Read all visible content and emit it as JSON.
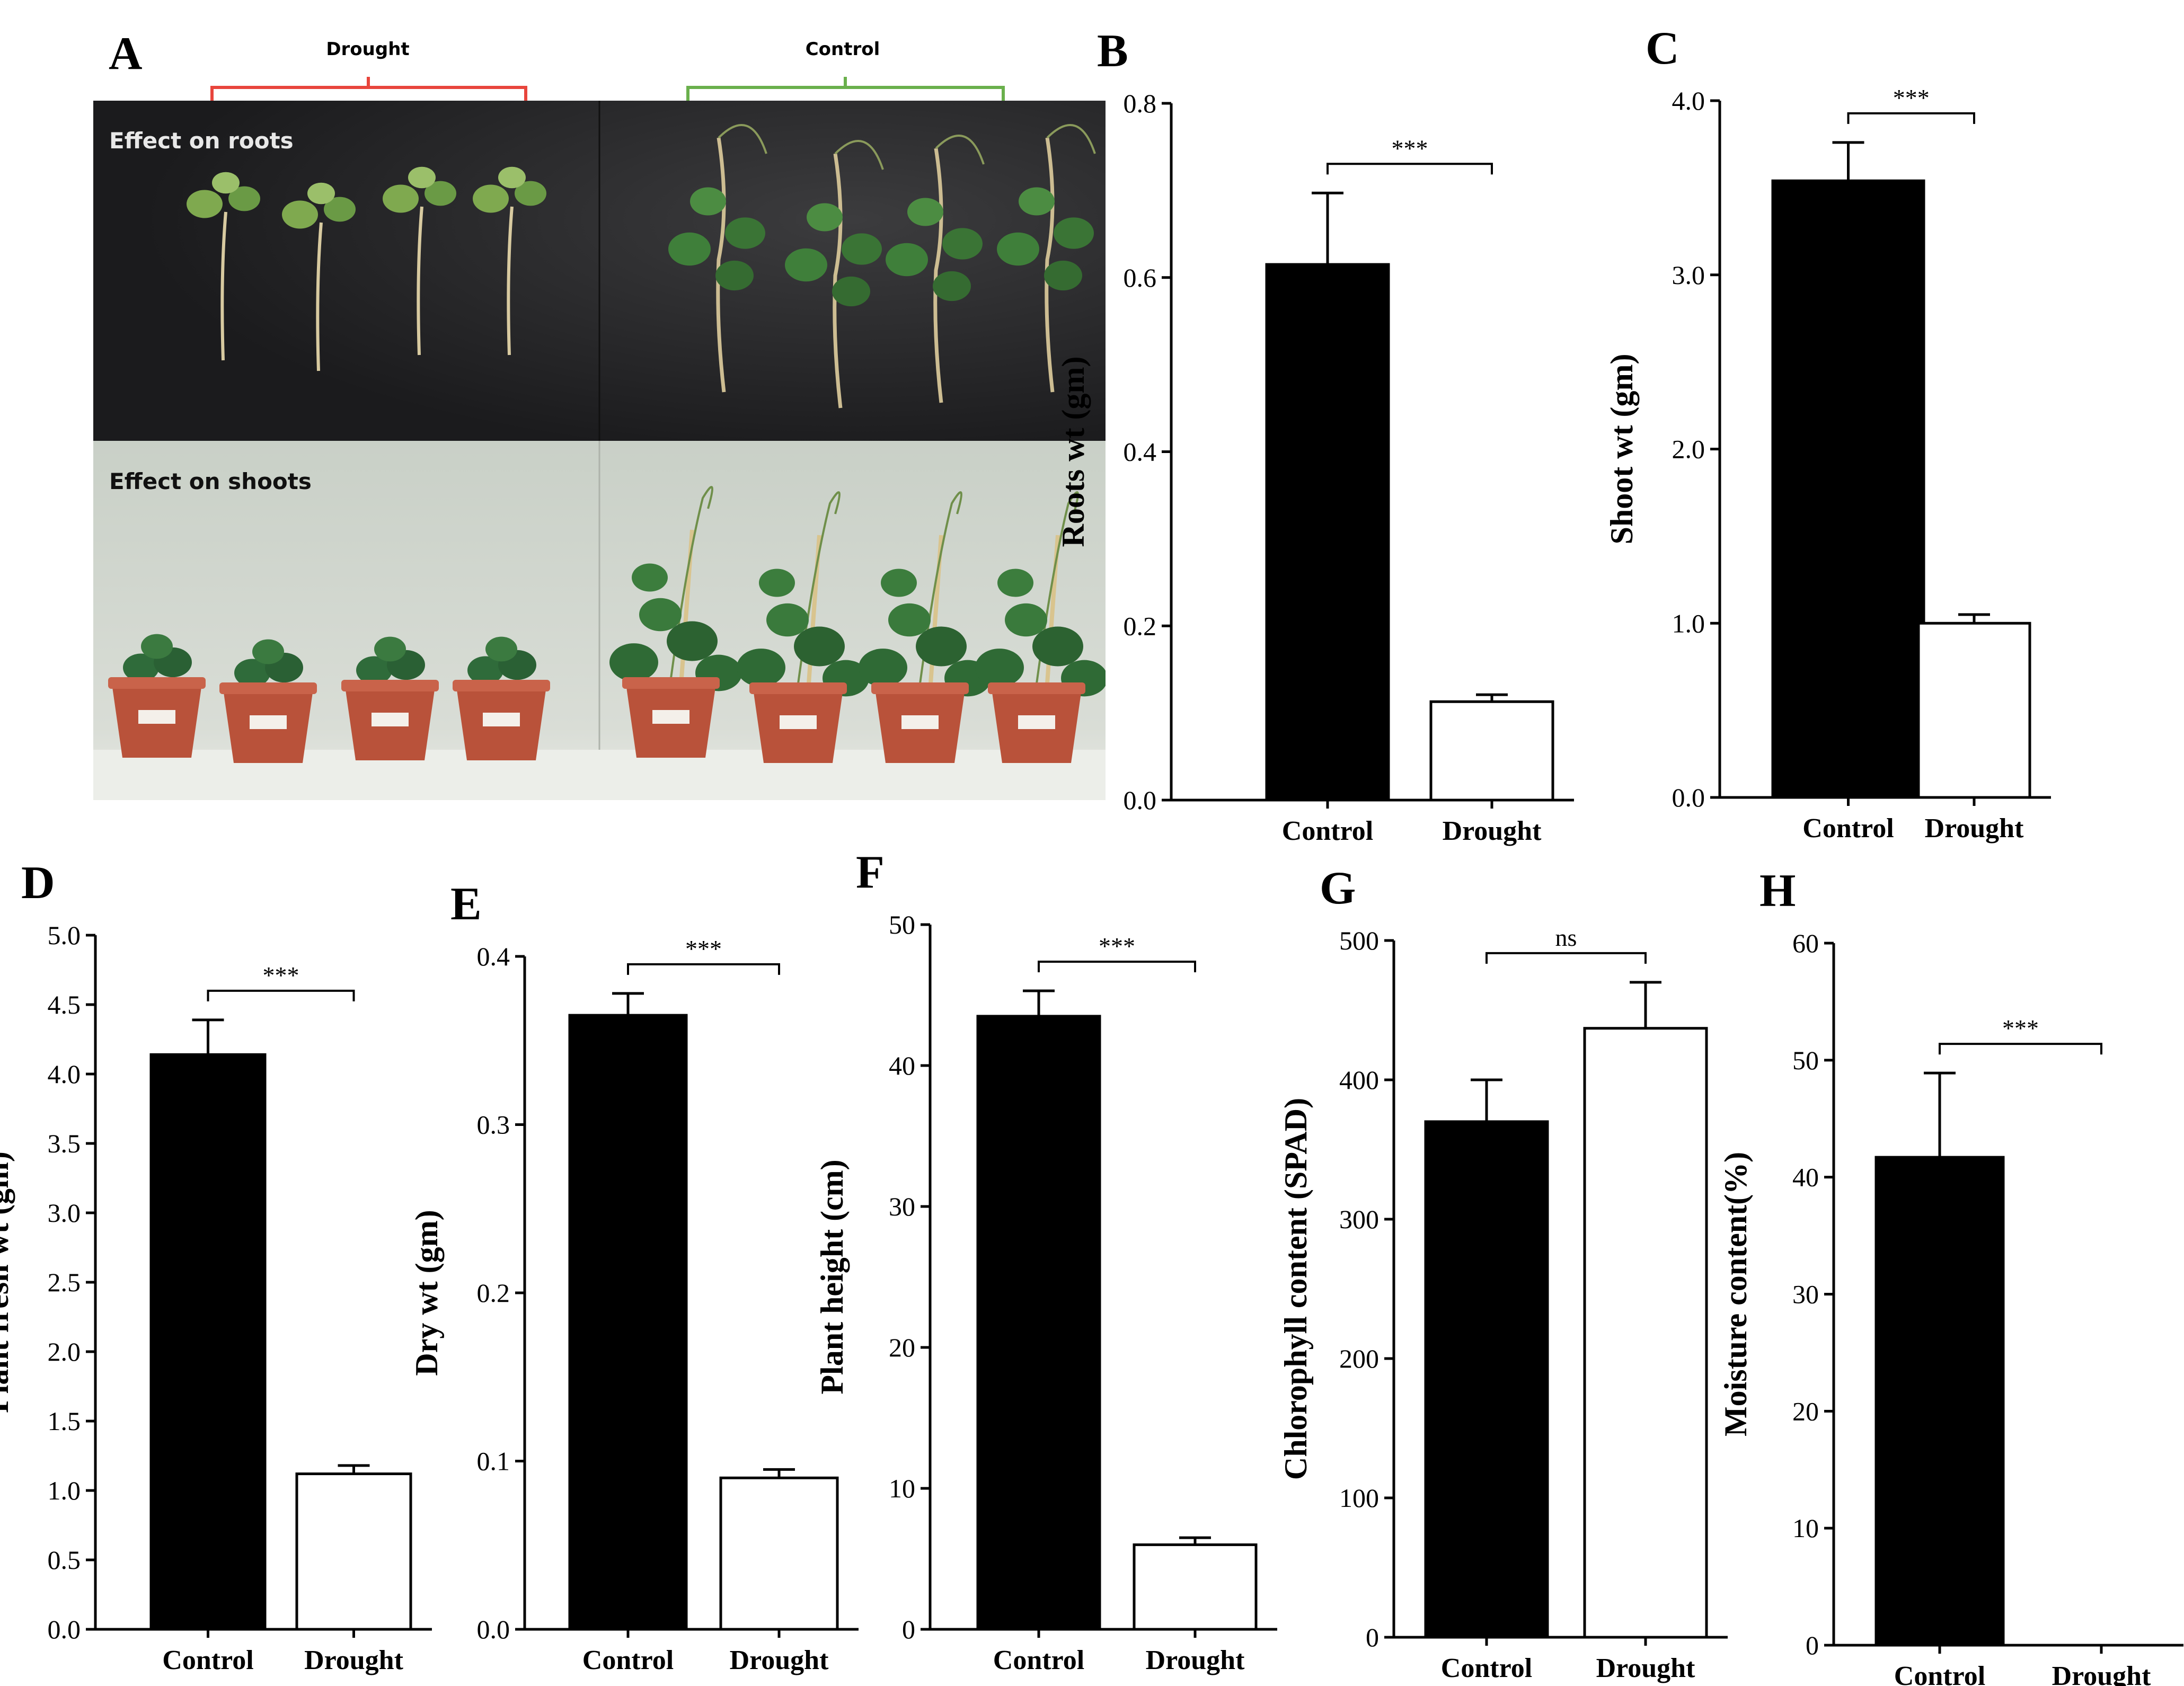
{
  "panel_a": {
    "letter": "A",
    "drought_label": "Drought",
    "control_label": "Control",
    "roots_caption": "Effect on roots",
    "shoots_caption": "Effect on shoots",
    "colors": {
      "drought_bracket": "#e8453c",
      "control_bracket": "#6ab04c"
    }
  },
  "chart_data": [
    {
      "type": "bar",
      "letter": "B",
      "ylabel": "Roots wt (gm)",
      "categories": [
        "Control",
        "Drought"
      ],
      "values": [
        0.615,
        0.113
      ],
      "errors": [
        0.082,
        0.008
      ],
      "ylim": [
        0,
        0.8
      ],
      "yticks": [
        "0.0",
        "0.2",
        "0.4",
        "0.6",
        "0.8"
      ],
      "significance": "***",
      "fill": [
        "#000000",
        "#ffffff"
      ]
    },
    {
      "type": "bar",
      "letter": "C",
      "ylabel": "Shoot wt (gm)",
      "categories": [
        "Control",
        "Drought"
      ],
      "values": [
        3.54,
        1.0
      ],
      "errors": [
        0.22,
        0.05
      ],
      "ylim": [
        0,
        4.0
      ],
      "yticks": [
        "0.0",
        "1.0",
        "2.0",
        "3.0",
        "4.0"
      ],
      "significance": "***",
      "fill": [
        "#000000",
        "#ffffff"
      ]
    },
    {
      "type": "bar",
      "letter": "D",
      "ylabel": "Plant fresh wt  (gm)",
      "categories": [
        "Control",
        "Drought"
      ],
      "values": [
        4.14,
        1.12
      ],
      "errors": [
        0.25,
        0.06
      ],
      "ylim": [
        0,
        5.0
      ],
      "yticks": [
        "0.0",
        "0.5",
        "1.0",
        "1.5",
        "2.0",
        "2.5",
        "3.0",
        "3.5",
        "4.0",
        "4.5",
        "5.0"
      ],
      "significance": "***",
      "fill": [
        "#000000",
        "#ffffff"
      ]
    },
    {
      "type": "bar",
      "letter": "E",
      "ylabel": "Dry wt (gm)",
      "categories": [
        "Control",
        "Drought"
      ],
      "values": [
        0.365,
        0.09
      ],
      "errors": [
        0.013,
        0.005
      ],
      "ylim": [
        0,
        0.4
      ],
      "yticks": [
        "0.0",
        "0.1",
        "0.2",
        "0.3",
        "0.4"
      ],
      "significance": "***",
      "fill": [
        "#000000",
        "#ffffff"
      ]
    },
    {
      "type": "bar",
      "letter": "F",
      "ylabel": "Plant height (cm)",
      "categories": [
        "Control",
        "Drought"
      ],
      "values": [
        43.5,
        6.0
      ],
      "errors": [
        1.8,
        0.5
      ],
      "ylim": [
        0,
        50
      ],
      "yticks": [
        "0",
        "10",
        "20",
        "30",
        "40",
        "50"
      ],
      "significance": "***",
      "fill": [
        "#000000",
        "#ffffff"
      ]
    },
    {
      "type": "bar",
      "letter": "G",
      "ylabel": "Chlorophyll content (SPAD)",
      "categories": [
        "Control",
        "Drought"
      ],
      "values": [
        370,
        437
      ],
      "errors": [
        30,
        33
      ],
      "ylim": [
        0,
        500
      ],
      "yticks": [
        "0",
        "100",
        "200",
        "300",
        "400",
        "500"
      ],
      "significance": "ns",
      "fill": [
        "#000000",
        "#ffffff"
      ]
    },
    {
      "type": "bar",
      "letter": "H",
      "ylabel": "Moisture content(%)",
      "categories": [
        "Control",
        "Drought"
      ],
      "values": [
        41.7,
        0
      ],
      "errors": [
        7.2,
        0
      ],
      "ylim": [
        0,
        60
      ],
      "yticks": [
        "0",
        "10",
        "20",
        "30",
        "40",
        "50",
        "60"
      ],
      "significance": "***",
      "fill": [
        "#000000",
        "#ffffff"
      ]
    }
  ]
}
